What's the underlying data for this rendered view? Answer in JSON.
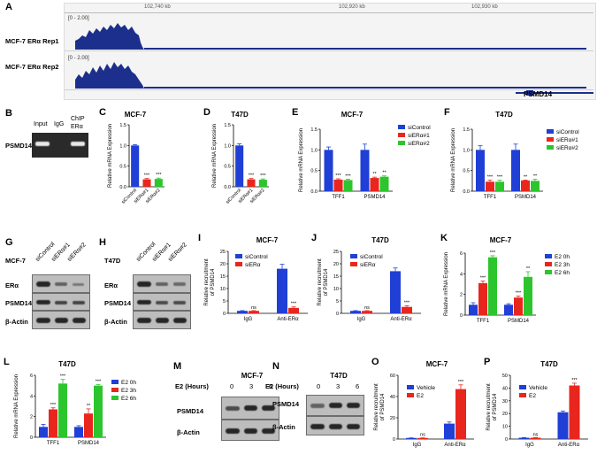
{
  "colors": {
    "blue": "#1f3fd6",
    "red": "#e8261e",
    "green": "#2dc52d",
    "track": "#1c2f8c",
    "gray": "#f0f0f0"
  },
  "panel_a": {
    "letter": "A",
    "coords": [
      "102,740 kb",
      "102,920 kb",
      "102,930 kb"
    ],
    "tracks": [
      {
        "name": "MCF-7 ERα Rep1",
        "scale": "[0 - 2.00]"
      },
      {
        "name": "MCF-7 ERα Rep2",
        "scale": "[0 - 2.00]"
      }
    ],
    "gene": "PSMD14"
  },
  "panel_b": {
    "letter": "B",
    "row_label": "PSMD14",
    "lanes": [
      "Input",
      "IgG",
      "ChIP",
      "ERα"
    ]
  },
  "western": {
    "G": {
      "letter": "G",
      "cell": "MCF-7",
      "lanes": [
        "siControl",
        "siERα#1",
        "siERα#2"
      ],
      "rows": [
        "ERα",
        "PSMD14",
        "β-Actin"
      ]
    },
    "H": {
      "letter": "H",
      "cell": "T47D",
      "lanes": [
        "siControl",
        "siERα#1",
        "siERα#2"
      ],
      "rows": [
        "ERα",
        "PSMD14",
        "β-Actin"
      ]
    },
    "M": {
      "letter": "M",
      "cell": "MCF-7",
      "hours_label": "E2 (Hours)",
      "hours": [
        "0",
        "3",
        "6"
      ],
      "rows": [
        "PSMD14",
        "β-Actin"
      ]
    },
    "N": {
      "letter": "N",
      "cell": "T47D",
      "hours_label": "E2 (Hours)",
      "hours": [
        "0",
        "3",
        "6"
      ],
      "rows": [
        "PSMD14",
        "β-Actin"
      ]
    }
  },
  "chart_data": [
    {
      "id": "C",
      "type": "bar",
      "title": "MCF-7",
      "ylabel": "Relative mRNA Expression",
      "ylim": [
        0,
        1.5
      ],
      "yticks": [
        0.0,
        0.5,
        1.0,
        1.5
      ],
      "categories": [
        "siControl",
        "siERα#1",
        "siERα#2"
      ],
      "values": [
        1.0,
        0.18,
        0.19
      ],
      "errors": [
        0.02,
        0.02,
        0.02
      ],
      "sig": [
        "",
        "***",
        "***"
      ],
      "colors": [
        "#1f3fd6",
        "#e8261e",
        "#2dc52d"
      ]
    },
    {
      "id": "D",
      "type": "bar",
      "title": "T47D",
      "ylabel": "Relative mRNA Expression",
      "ylim": [
        0,
        1.5
      ],
      "yticks": [
        0.0,
        0.5,
        1.0,
        1.5
      ],
      "categories": [
        "siControl",
        "siERα#1",
        "siERα#2"
      ],
      "values": [
        1.0,
        0.18,
        0.17
      ],
      "errors": [
        0.04,
        0.02,
        0.02
      ],
      "sig": [
        "",
        "***",
        "***"
      ],
      "colors": [
        "#1f3fd6",
        "#e8261e",
        "#2dc52d"
      ]
    },
    {
      "id": "E",
      "type": "bar",
      "title": "MCF-7",
      "ylabel": "Relative mRNA Expression",
      "ylim": [
        0,
        1.5
      ],
      "yticks": [
        0.0,
        0.5,
        1.0,
        1.5
      ],
      "categories": [
        "TFF1",
        "PSMD14"
      ],
      "series": [
        {
          "name": "siControl",
          "values": [
            1.0,
            1.0
          ],
          "errors": [
            0.07,
            0.14
          ],
          "sig": [
            "",
            ""
          ]
        },
        {
          "name": "siERα#1",
          "values": [
            0.28,
            0.32
          ],
          "errors": [
            0.02,
            0.02
          ],
          "sig": [
            "***",
            "**"
          ]
        },
        {
          "name": "siERα#2",
          "values": [
            0.27,
            0.35
          ],
          "errors": [
            0.02,
            0.02
          ],
          "sig": [
            "***",
            "**"
          ]
        }
      ]
    },
    {
      "id": "F",
      "type": "bar",
      "title": "T47D",
      "ylabel": "Relative mRNA Expression",
      "ylim": [
        0,
        1.5
      ],
      "yticks": [
        0.0,
        0.5,
        1.0,
        1.5
      ],
      "categories": [
        "TFF1",
        "PSMD14"
      ],
      "series": [
        {
          "name": "siControl",
          "values": [
            1.0,
            1.0
          ],
          "errors": [
            0.1,
            0.14
          ],
          "sig": [
            "",
            ""
          ]
        },
        {
          "name": "siERα#1",
          "values": [
            0.23,
            0.26
          ],
          "errors": [
            0.04,
            0.01
          ],
          "sig": [
            "***",
            "**"
          ]
        },
        {
          "name": "siERα#2",
          "values": [
            0.23,
            0.25
          ],
          "errors": [
            0.04,
            0.04
          ],
          "sig": [
            "***",
            "**"
          ]
        }
      ]
    },
    {
      "id": "I",
      "type": "bar",
      "title": "MCF-7",
      "ylabel": "Relative recruitment of PSMD14",
      "ylim": [
        0,
        25
      ],
      "yticks": [
        0,
        5,
        10,
        15,
        20,
        25
      ],
      "categories": [
        "IgG",
        "Anti-ERα"
      ],
      "series": [
        {
          "name": "siControl",
          "values": [
            1.0,
            18.0
          ],
          "errors": [
            0.1,
            1.8
          ],
          "sig": [
            "",
            ""
          ]
        },
        {
          "name": "siERα",
          "values": [
            1.0,
            2.2
          ],
          "errors": [
            0.1,
            0.4
          ],
          "sig": [
            "ns",
            "***"
          ]
        }
      ]
    },
    {
      "id": "J",
      "type": "bar",
      "title": "T47D",
      "ylabel": "Relative recruitment of PSMD14",
      "ylim": [
        0,
        25
      ],
      "yticks": [
        0,
        5,
        10,
        15,
        20,
        25
      ],
      "categories": [
        "IgG",
        "Anti-ERα"
      ],
      "series": [
        {
          "name": "siControl",
          "values": [
            1.0,
            17.0
          ],
          "errors": [
            0.1,
            1.3
          ],
          "sig": [
            "",
            ""
          ]
        },
        {
          "name": "siERα",
          "values": [
            1.0,
            2.6
          ],
          "errors": [
            0.1,
            0.5
          ],
          "sig": [
            "ns",
            "***"
          ]
        }
      ]
    },
    {
      "id": "K",
      "type": "bar",
      "title": "MCF-7",
      "ylabel": "Relative mRNA Expression",
      "ylim": [
        0,
        6
      ],
      "yticks": [
        0,
        2,
        4,
        6
      ],
      "categories": [
        "TFF1",
        "PSMD14"
      ],
      "series": [
        {
          "name": "E2 0h",
          "values": [
            1.0,
            1.0
          ],
          "errors": [
            0.2,
            0.1
          ],
          "sig": [
            "",
            ""
          ]
        },
        {
          "name": "E2 3h",
          "values": [
            3.1,
            1.7
          ],
          "errors": [
            0.2,
            0.15
          ],
          "sig": [
            "***",
            "***"
          ]
        },
        {
          "name": "E2 6h",
          "values": [
            5.6,
            3.7
          ],
          "errors": [
            0.15,
            0.5
          ],
          "sig": [
            "***",
            "**"
          ]
        }
      ]
    },
    {
      "id": "L",
      "type": "bar",
      "title": "T47D",
      "ylabel": "Relative mRNA Expression",
      "ylim": [
        0,
        6
      ],
      "yticks": [
        0,
        2,
        4,
        6
      ],
      "categories": [
        "TFF1",
        "PSMD14"
      ],
      "series": [
        {
          "name": "E2 0h",
          "values": [
            1.0,
            1.0
          ],
          "errors": [
            0.25,
            0.12
          ],
          "sig": [
            "",
            ""
          ]
        },
        {
          "name": "E2 3h",
          "values": [
            2.7,
            2.3
          ],
          "errors": [
            0.15,
            0.45
          ],
          "sig": [
            "***",
            "**"
          ]
        },
        {
          "name": "E2 6h",
          "values": [
            5.2,
            5.0
          ],
          "errors": [
            0.4,
            0.1
          ],
          "sig": [
            "***",
            "***"
          ]
        }
      ]
    },
    {
      "id": "O",
      "type": "bar",
      "title": "MCF-7",
      "ylabel": "Relative recruitment of PSMD14",
      "ylim": [
        0,
        60
      ],
      "yticks": [
        0,
        20,
        40,
        60
      ],
      "categories": [
        "IgG",
        "Anti-ERα"
      ],
      "series": [
        {
          "name": "Vehicle",
          "values": [
            1.0,
            14.5
          ],
          "errors": [
            0.1,
            1.5
          ],
          "sig": [
            "",
            ""
          ]
        },
        {
          "name": "E2",
          "values": [
            1.0,
            47.0
          ],
          "errors": [
            0.1,
            4.0
          ],
          "sig": [
            "ns",
            "***"
          ]
        }
      ]
    },
    {
      "id": "P",
      "type": "bar",
      "title": "T47D",
      "ylabel": "Relative recruitment of PSMD14",
      "ylim": [
        0,
        50
      ],
      "yticks": [
        0,
        10,
        20,
        30,
        40,
        50
      ],
      "categories": [
        "IgG",
        "Anti-ERα"
      ],
      "series": [
        {
          "name": "Vehicle",
          "values": [
            1.0,
            21.0
          ],
          "errors": [
            0.1,
            1.0
          ],
          "sig": [
            "",
            ""
          ]
        },
        {
          "name": "E2",
          "values": [
            1.0,
            42.0
          ],
          "errors": [
            0.1,
            1.8
          ],
          "sig": [
            "ns",
            "***"
          ]
        }
      ]
    }
  ]
}
